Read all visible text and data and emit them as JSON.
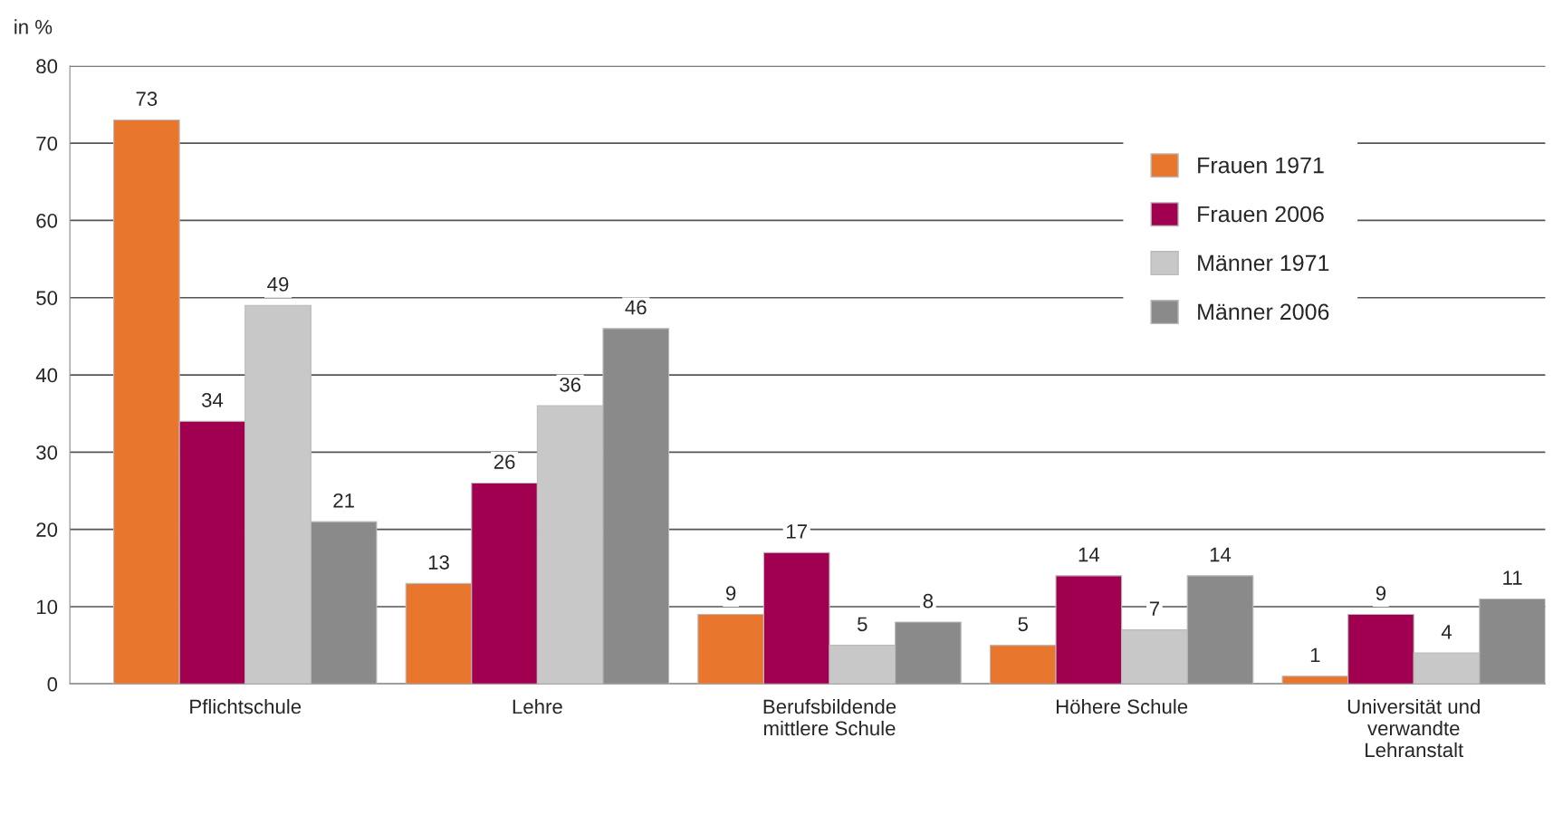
{
  "chart_data": {
    "type": "bar",
    "ylabel": "in %",
    "categories": [
      "Pflichtschule",
      "Lehre",
      "Berufsbildende\nmittlere Schule",
      "Höhere Schule",
      "Universität und\nverwandte\nLehranstalt"
    ],
    "series": [
      {
        "name": "Frauen 1971",
        "color": "#e8762d",
        "values": [
          73,
          13,
          9,
          5,
          1
        ]
      },
      {
        "name": "Frauen 2006",
        "color": "#a0004f",
        "values": [
          34,
          26,
          17,
          14,
          9
        ]
      },
      {
        "name": "Männer 1971",
        "color": "#c8c8c8",
        "values": [
          49,
          36,
          5,
          7,
          4
        ]
      },
      {
        "name": "Männer 2006",
        "color": "#8a8a8a",
        "values": [
          21,
          46,
          8,
          14,
          11
        ]
      }
    ],
    "ylim": [
      0,
      80
    ],
    "yticks": [
      0,
      10,
      20,
      30,
      40,
      50,
      60,
      70,
      80
    ],
    "grid": "y",
    "legend": "top right",
    "data_labels": true
  }
}
